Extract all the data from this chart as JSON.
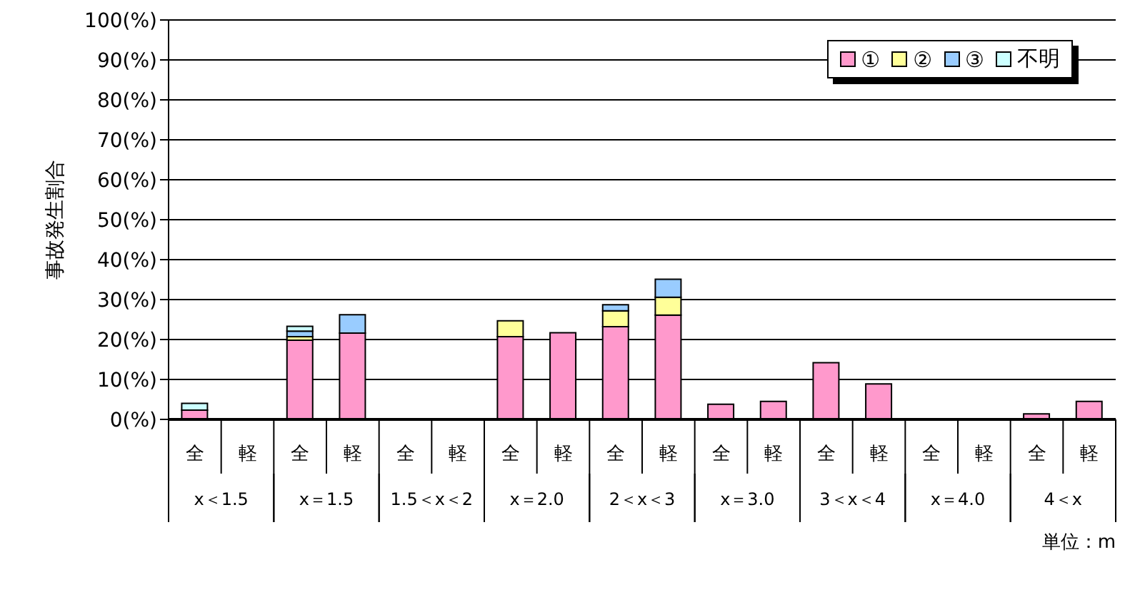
{
  "chart_data": {
    "type": "bar",
    "stacked": true,
    "ylabel": "事故発生割合",
    "xlabel": "単位：m",
    "categories": [
      "全",
      "軽",
      "全",
      "軽",
      "全",
      "軽",
      "全",
      "軽",
      "全",
      "軽",
      "全",
      "軽",
      "全",
      "軽",
      "全",
      "軽",
      "全",
      "軽"
    ],
    "annotations": [
      "x＜1.5",
      "x＝1.5",
      "1.5＜x＜2",
      "x＝2.0",
      "2＜x＜3",
      "x＝3.0",
      "3＜x＜4",
      "x＝4.0",
      "4＜x"
    ],
    "series": [
      {
        "name": "①",
        "color": "#ff99cc",
        "values": [
          2.3,
          0,
          19.8,
          21.6,
          0,
          0,
          20.7,
          21.7,
          23.2,
          26.1,
          3.8,
          4.5,
          14.2,
          8.9,
          0,
          0,
          1.4,
          4.5
        ]
      },
      {
        "name": "②",
        "color": "#ffff99",
        "values": [
          0,
          0,
          0.9,
          0,
          0,
          0,
          4.0,
          0,
          4.0,
          4.5,
          0,
          0,
          0,
          0,
          0,
          0,
          0,
          0
        ]
      },
      {
        "name": "③",
        "color": "#99ccff",
        "values": [
          0,
          0,
          1.4,
          4.6,
          0,
          0,
          0,
          0,
          1.5,
          4.5,
          0,
          0,
          0,
          0,
          0,
          0,
          0,
          0
        ]
      },
      {
        "name": "不明",
        "color": "#ccffff",
        "values": [
          1.7,
          0,
          1.2,
          0,
          0,
          0,
          0,
          0,
          0,
          0,
          0,
          0,
          0,
          0,
          0,
          0,
          0,
          0
        ]
      }
    ],
    "ylim": [
      0,
      100
    ],
    "yticks": [
      {
        "value": 0,
        "label": "0(%)"
      },
      {
        "value": 10,
        "label": "10(%)"
      },
      {
        "value": 20,
        "label": "20(%)"
      },
      {
        "value": 30,
        "label": "30(%)"
      },
      {
        "value": 40,
        "label": "40(%)"
      },
      {
        "value": 50,
        "label": "50(%)"
      },
      {
        "value": 60,
        "label": "60(%)"
      },
      {
        "value": 70,
        "label": "70(%)"
      },
      {
        "value": 80,
        "label": "80(%)"
      },
      {
        "value": 90,
        "label": "90(%)"
      },
      {
        "value": 100,
        "label": "100(%)"
      }
    ],
    "grid": "y",
    "legend": "top right"
  }
}
